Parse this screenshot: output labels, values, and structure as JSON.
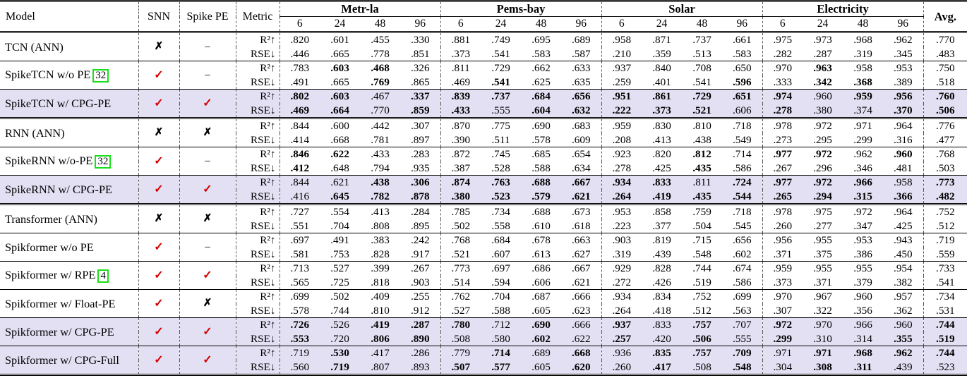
{
  "header": {
    "model": "Model",
    "snn": "SNN",
    "spike_pe": "Spike PE",
    "metric": "Metric",
    "groups": [
      {
        "name": "Metr-la",
        "horizons": [
          "6",
          "24",
          "48",
          "96"
        ]
      },
      {
        "name": "Pems-bay",
        "horizons": [
          "6",
          "24",
          "48",
          "96"
        ]
      },
      {
        "name": "Solar",
        "horizons": [
          "6",
          "24",
          "48",
          "96"
        ]
      },
      {
        "name": "Electricity",
        "horizons": [
          "6",
          "24",
          "48",
          "96"
        ]
      }
    ],
    "avg": "Avg."
  },
  "metrics": [
    "R²↑",
    "RSE↓"
  ],
  "marks": {
    "check": "✓",
    "cross": "✗",
    "dash": "–"
  },
  "colors": {
    "highlight": "#e4e0f4",
    "check": "#d40000",
    "citation_border": "#18e018"
  },
  "bold_convention": "values prefixed with * are shown in bold",
  "rows": [
    {
      "model": "TCN (ANN)",
      "cite": null,
      "snn": "cross",
      "spike_pe": "dash",
      "highlight": false,
      "r2": [
        ".820",
        ".601",
        ".455",
        ".330",
        ".881",
        ".749",
        ".695",
        ".689",
        ".958",
        ".871",
        ".737",
        ".661",
        ".975",
        ".973",
        ".968",
        ".962",
        ".770"
      ],
      "rse": [
        ".446",
        ".665",
        ".778",
        ".851",
        ".373",
        ".541",
        ".583",
        ".587",
        ".210",
        ".359",
        ".513",
        ".583",
        ".282",
        ".287",
        ".319",
        ".345",
        ".483"
      ]
    },
    {
      "model": "SpikeTCN w/o PE",
      "cite": "32",
      "snn": "check",
      "spike_pe": "dash",
      "highlight": false,
      "r2": [
        ".783",
        "*.603",
        "*.468",
        ".326",
        ".811",
        ".729",
        ".662",
        ".633",
        ".937",
        ".840",
        ".708",
        ".650",
        ".970",
        "*.963",
        ".958",
        ".953",
        ".750"
      ],
      "rse": [
        ".491",
        ".665",
        "*.769",
        ".865",
        ".469",
        "*.541",
        ".625",
        ".635",
        ".259",
        ".401",
        ".541",
        "*.596",
        ".333",
        "*.342",
        "*.368",
        ".389",
        ".518"
      ]
    },
    {
      "model": "SpikeTCN w/ CPG-PE",
      "cite": null,
      "snn": "check",
      "spike_pe": "check",
      "highlight": true,
      "r2": [
        "*.802",
        "*.603",
        ".467",
        "*.337",
        "*.839",
        "*.737",
        "*.684",
        "*.656",
        "*.951",
        "*.861",
        "*.729",
        "*.651",
        "*.974",
        ".960",
        "*.959",
        "*.956",
        "*.760"
      ],
      "rse": [
        "*.469",
        "*.664",
        ".770",
        "*.859",
        "*.433",
        ".555",
        "*.604",
        "*.632",
        "*.222",
        "*.373",
        "*.521",
        ".606",
        "*.278",
        ".380",
        ".374",
        "*.370",
        "*.506"
      ]
    },
    {
      "model": "RNN (ANN)",
      "cite": null,
      "snn": "cross",
      "spike_pe": "cross",
      "highlight": false,
      "r2": [
        ".844",
        ".600",
        ".442",
        ".307",
        ".870",
        ".775",
        ".690",
        ".683",
        ".959",
        ".830",
        ".810",
        ".718",
        ".978",
        ".972",
        ".971",
        ".964",
        ".776"
      ],
      "rse": [
        ".414",
        ".668",
        ".781",
        ".897",
        ".390",
        ".511",
        ".578",
        ".609",
        ".208",
        ".413",
        ".438",
        ".549",
        ".273",
        ".295",
        ".299",
        ".316",
        ".477"
      ]
    },
    {
      "model": "SpikeRNN w/o-PE",
      "cite": "32",
      "snn": "check",
      "spike_pe": "dash",
      "highlight": false,
      "r2": [
        "*.846",
        "*.622",
        ".433",
        ".283",
        ".872",
        ".745",
        ".685",
        ".654",
        ".923",
        ".820",
        "*.812",
        ".714",
        "*.977",
        "*.972",
        ".962",
        "*.960",
        ".768"
      ],
      "rse": [
        "*.412",
        ".648",
        ".794",
        ".935",
        ".387",
        ".528",
        ".588",
        ".634",
        ".278",
        ".425",
        "*.435",
        ".586",
        ".267",
        ".296",
        ".346",
        ".481",
        ".503"
      ]
    },
    {
      "model": "SpikeRNN w/ CPG-PE",
      "cite": null,
      "snn": "check",
      "spike_pe": "check",
      "highlight": true,
      "r2": [
        ".844",
        ".621",
        "*.438",
        "*.306",
        "*.874",
        "*.763",
        "*.688",
        "*.667",
        "*.934",
        "*.833",
        ".811",
        "*.724",
        "*.977",
        "*.972",
        "*.966",
        ".958",
        "*.773"
      ],
      "rse": [
        ".416",
        "*.645",
        "*.782",
        "*.878",
        "*.380",
        "*.523",
        "*.579",
        "*.621",
        "*.264",
        "*.419",
        "*.435",
        "*.544",
        "*.265",
        "*.294",
        "*.315",
        "*.366",
        "*.482"
      ]
    },
    {
      "model": "Transformer (ANN)",
      "cite": null,
      "snn": "cross",
      "spike_pe": "cross",
      "highlight": false,
      "r2": [
        ".727",
        ".554",
        ".413",
        ".284",
        ".785",
        ".734",
        ".688",
        ".673",
        ".953",
        ".858",
        ".759",
        ".718",
        ".978",
        ".975",
        ".972",
        ".964",
        ".752"
      ],
      "rse": [
        ".551",
        ".704",
        ".808",
        ".895",
        ".502",
        ".558",
        ".610",
        ".618",
        ".223",
        ".377",
        ".504",
        ".545",
        ".260",
        ".277",
        ".347",
        ".425",
        ".512"
      ]
    },
    {
      "model": "Spikformer w/o PE",
      "cite": null,
      "snn": "check",
      "spike_pe": "dash",
      "highlight": false,
      "r2": [
        ".697",
        ".491",
        ".383",
        ".242",
        ".768",
        ".684",
        ".678",
        ".663",
        ".903",
        ".819",
        ".715",
        ".656",
        ".956",
        ".955",
        ".953",
        ".943",
        ".719"
      ],
      "rse": [
        ".581",
        ".753",
        ".828",
        ".917",
        ".521",
        ".607",
        ".613",
        ".627",
        ".319",
        ".439",
        ".548",
        ".602",
        ".371",
        ".375",
        ".386",
        ".450",
        ".559"
      ]
    },
    {
      "model": "Spikformer w/ RPE",
      "cite": "4",
      "snn": "check",
      "spike_pe": "check",
      "highlight": false,
      "r2": [
        ".713",
        ".527",
        ".399",
        ".267",
        ".773",
        ".697",
        ".686",
        ".667",
        ".929",
        ".828",
        ".744",
        ".674",
        ".959",
        ".955",
        ".955",
        ".954",
        ".733"
      ],
      "rse": [
        ".565",
        ".725",
        ".818",
        ".903",
        ".514",
        ".594",
        ".606",
        ".621",
        ".272",
        ".426",
        ".519",
        ".586",
        ".373",
        ".371",
        ".379",
        ".382",
        ".541"
      ]
    },
    {
      "model": "Spikformer w/ Float-PE",
      "cite": null,
      "snn": "check",
      "spike_pe": "cross",
      "highlight": false,
      "r2": [
        ".699",
        ".502",
        ".409",
        ".255",
        ".762",
        ".704",
        ".687",
        ".666",
        ".934",
        ".834",
        ".752",
        ".699",
        ".970",
        ".967",
        ".960",
        ".957",
        ".734"
      ],
      "rse": [
        ".578",
        ".744",
        ".810",
        ".912",
        ".527",
        ".588",
        ".605",
        ".623",
        ".264",
        ".418",
        ".512",
        ".563",
        ".307",
        ".322",
        ".356",
        ".362",
        ".531"
      ]
    },
    {
      "model": "Spikformer w/ CPG-PE",
      "cite": null,
      "snn": "check",
      "spike_pe": "check",
      "highlight": true,
      "r2": [
        "*.726",
        ".526",
        "*.419",
        "*.287",
        "*.780",
        ".712",
        "*.690",
        ".666",
        "*.937",
        ".833",
        "*.757",
        ".707",
        "*.972",
        ".970",
        ".966",
        ".960",
        "*.744"
      ],
      "rse": [
        "*.553",
        ".720",
        "*.806",
        "*.890",
        ".508",
        ".580",
        "*.602",
        ".622",
        "*.257",
        ".420",
        "*.506",
        ".555",
        "*.299",
        ".310",
        ".314",
        "*.355",
        "*.519"
      ]
    },
    {
      "model": "Spikformer w/ CPG-Full",
      "cite": null,
      "snn": "check",
      "spike_pe": "check",
      "highlight": true,
      "r2": [
        ".719",
        "*.530",
        ".417",
        ".286",
        ".779",
        "*.714",
        ".689",
        "*.668",
        ".936",
        "*.835",
        "*.757",
        "*.709",
        ".971",
        "*.971",
        "*.968",
        "*.962",
        "*.744"
      ],
      "rse": [
        ".560",
        "*.719",
        ".807",
        ".893",
        "*.507",
        "*.577",
        ".605",
        "*.620",
        ".260",
        "*.417",
        ".508",
        "*.548",
        ".304",
        "*.308",
        "*.311",
        ".439",
        ".523"
      ]
    }
  ]
}
